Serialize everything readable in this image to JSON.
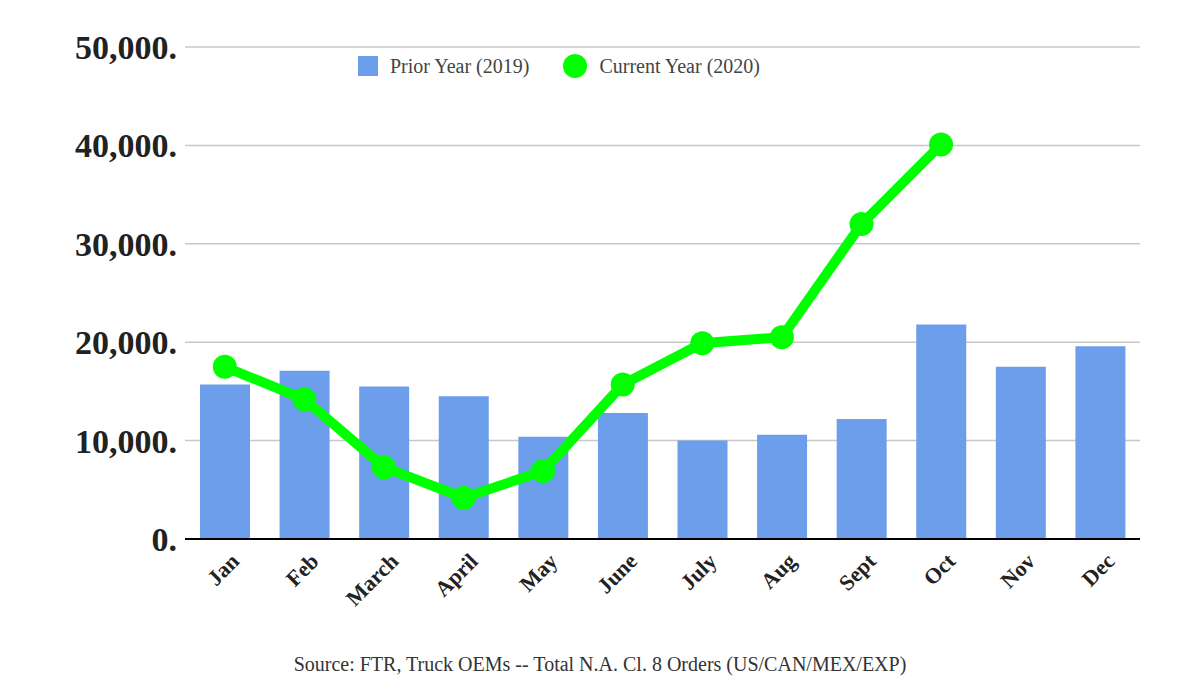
{
  "chart_data": {
    "type": "bar",
    "source": "Source: FTR, Truck OEMs -- Total N.A. Cl. 8 Orders (US/CAN/MEX/EXP)",
    "categories": [
      "Jan",
      "Feb",
      "March",
      "April",
      "May",
      "June",
      "July",
      "Aug",
      "Sept",
      "Oct",
      "Nov",
      "Dec"
    ],
    "series": [
      {
        "name": "Prior Year (2019)",
        "type": "bar",
        "color": "#6d9eeb",
        "values": [
          15700,
          17100,
          15500,
          14500,
          10400,
          12800,
          10000,
          10600,
          12200,
          21800,
          17500,
          19600
        ]
      },
      {
        "name": "Current Year (2020)",
        "type": "line",
        "color": "#00ff00",
        "marker": "circle",
        "line_style": "solid",
        "values": [
          17500,
          14200,
          7300,
          4200,
          6900,
          15700,
          19900,
          20500,
          32000,
          40100,
          null,
          null
        ]
      }
    ],
    "ylim": [
      0,
      50000
    ],
    "yticks": [
      {
        "value": 0,
        "label": "0."
      },
      {
        "value": 10000,
        "label": "10,000."
      },
      {
        "value": 20000,
        "label": "20,000."
      },
      {
        "value": 30000,
        "label": "30,000."
      },
      {
        "value": 40000,
        "label": "40,000."
      },
      {
        "value": 50000,
        "label": "50,000."
      }
    ],
    "grid": true,
    "legend": "top"
  }
}
